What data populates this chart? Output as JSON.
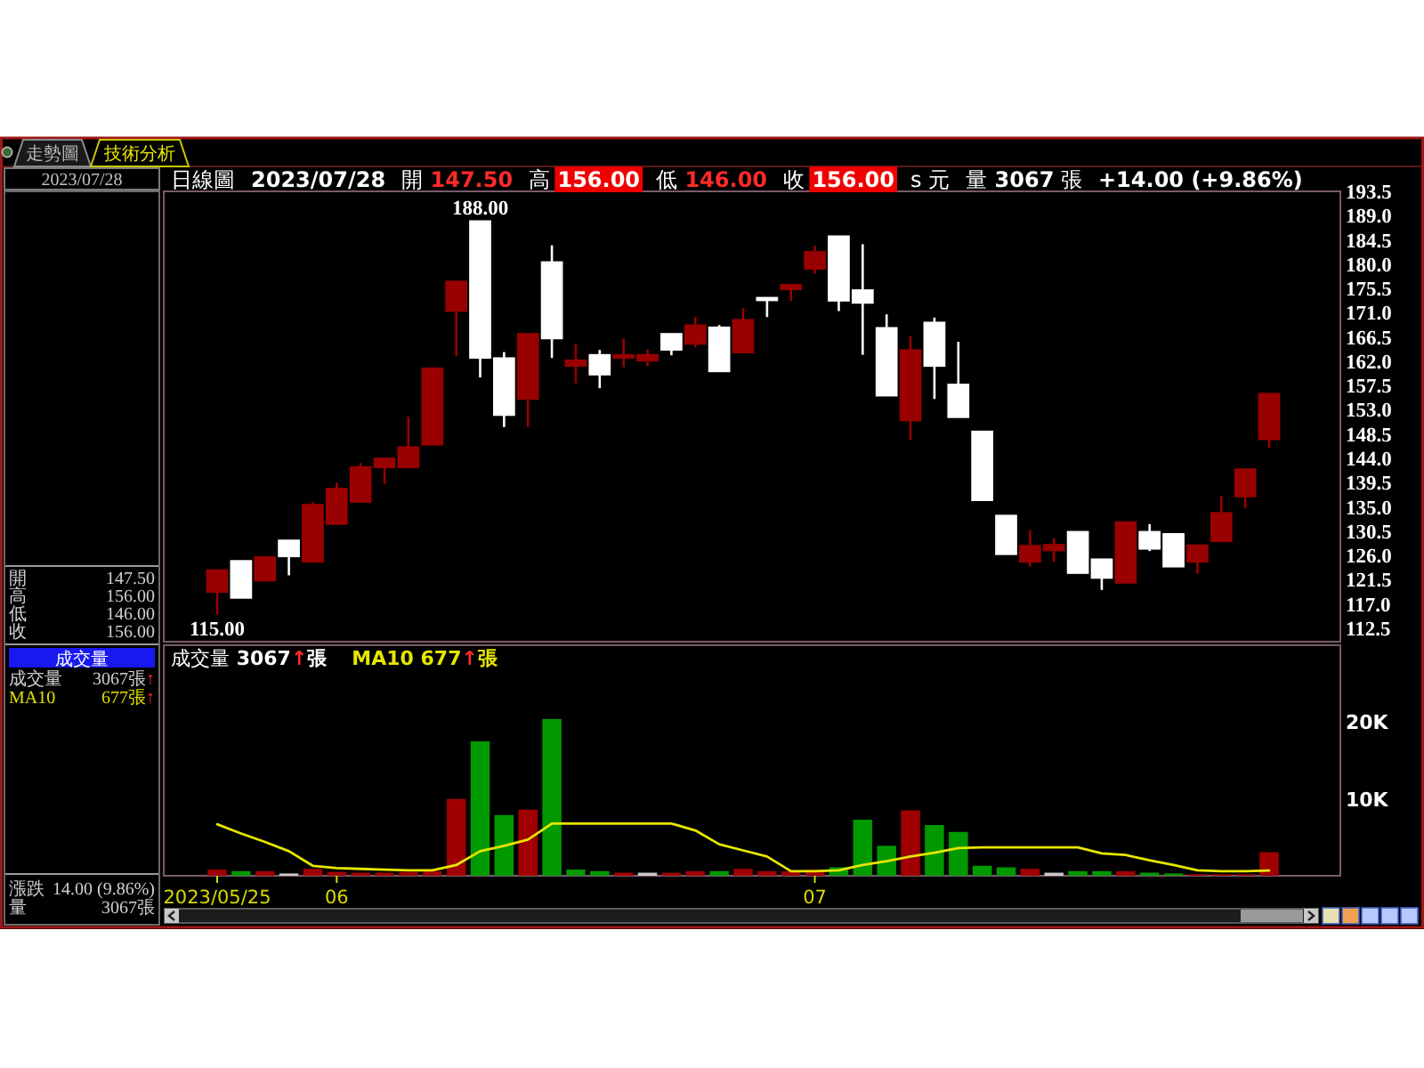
{
  "chart_data": [
    {
      "type": "other",
      "annotations": [
        "走勢圖",
        "技術分析",
        "2023/07/28",
        "開 147.50",
        "高 156.00",
        "低 146.00",
        "收 156.00",
        "成交量",
        "成交量 3067張↑",
        "MA10 677張↑",
        "漲跌 14.00 (9.86%)",
        "量 3067張"
      ]
    },
    {
      "type": "candlestick",
      "title": "日線圖",
      "annotations": [
        "2023/07/28",
        "開 147.50",
        "高 156.00",
        "低 146.00",
        "收 156.00",
        "s 元",
        "量 3067 張",
        "+14.00 (+9.86%)",
        {
          "text": "188.00",
          "y": 188
        },
        {
          "text": "115.00",
          "y": 115
        }
      ],
      "categories": [
        null,
        null,
        null,
        null,
        null,
        null,
        null,
        null,
        null,
        null,
        null,
        null,
        null,
        null,
        null,
        null,
        null,
        null,
        null,
        null,
        null,
        null,
        null,
        null,
        null,
        null,
        null,
        null,
        null,
        null,
        null,
        null,
        null,
        null,
        null,
        null,
        null,
        null,
        null,
        null,
        null,
        null,
        null,
        null,
        null
      ],
      "ohlc": [
        [
          119.2,
          123.3,
          115.0,
          123.3
        ],
        [
          125.0,
          125.0,
          118.1,
          118.1
        ],
        [
          121.3,
          125.7,
          121.3,
          125.7
        ],
        [
          128.8,
          128.8,
          122.3,
          125.8
        ],
        [
          124.8,
          135.9,
          124.8,
          135.4
        ],
        [
          131.8,
          139.5,
          131.8,
          138.4
        ],
        [
          135.9,
          143.1,
          135.9,
          142.4
        ],
        [
          142.3,
          144.0,
          139.2,
          144.0
        ],
        [
          142.3,
          151.7,
          142.3,
          146.1
        ],
        [
          146.5,
          160.7,
          146.5,
          160.7
        ],
        [
          171.3,
          176.8,
          162.9,
          176.8
        ],
        [
          188.0,
          188.0,
          159.0,
          162.6
        ],
        [
          162.6,
          163.7,
          149.8,
          152.0
        ],
        [
          155.0,
          167.1,
          149.8,
          167.1
        ],
        [
          180.4,
          183.5,
          162.6,
          166.2
        ],
        [
          161.1,
          165.3,
          157.9,
          162.2
        ],
        [
          163.2,
          164.1,
          157.0,
          159.5
        ],
        [
          162.6,
          166.2,
          160.9,
          163.2
        ],
        [
          162.1,
          164.2,
          161.1,
          163.2
        ],
        [
          167.1,
          167.1,
          163.1,
          164.1
        ],
        [
          165.2,
          170.2,
          164.6,
          168.7
        ],
        [
          168.3,
          168.7,
          160.1,
          160.1
        ],
        [
          163.6,
          171.8,
          163.6,
          169.7
        ],
        [
          173.8,
          173.8,
          170.2,
          173.3
        ],
        [
          175.3,
          176.2,
          173.2,
          176.2
        ],
        [
          179.1,
          183.4,
          178.2,
          182.3
        ],
        [
          185.2,
          185.2,
          171.3,
          173.2
        ],
        [
          175.2,
          183.7,
          163.2,
          172.8
        ],
        [
          168.2,
          170.7,
          155.6,
          155.6
        ],
        [
          151.0,
          166.7,
          147.4,
          164.1
        ],
        [
          169.2,
          170.1,
          155.0,
          161.1
        ],
        [
          157.7,
          165.6,
          151.6,
          151.6
        ],
        [
          149.0,
          149.0,
          136.2,
          136.2
        ],
        [
          133.4,
          133.4,
          126.2,
          126.2
        ],
        [
          124.8,
          130.7,
          123.9,
          127.8
        ],
        [
          126.9,
          129.2,
          124.8,
          128.0
        ],
        [
          130.4,
          130.4,
          122.7,
          122.7
        ],
        [
          125.3,
          125.3,
          119.6,
          121.8
        ],
        [
          120.9,
          132.2,
          120.9,
          132.2
        ],
        [
          130.4,
          131.8,
          126.8,
          127.2
        ],
        [
          130.0,
          130.0,
          123.9,
          123.9
        ],
        [
          124.8,
          127.9,
          122.6,
          127.9
        ],
        [
          128.6,
          137.0,
          128.6,
          133.9
        ],
        [
          136.9,
          142.0,
          134.7,
          142.0
        ],
        [
          147.5,
          156.0,
          146.0,
          156.0
        ]
      ],
      "colors": [
        "#990000",
        "#ffffff",
        "#990000",
        "#ffffff",
        "#990000",
        "#990000",
        "#990000",
        "#990000",
        "#990000",
        "#990000",
        "#990000",
        "#ffffff",
        "#ffffff",
        "#990000",
        "#ffffff",
        "#990000",
        "#ffffff",
        "#990000",
        "#990000",
        "#ffffff",
        "#990000",
        "#ffffff",
        "#990000",
        "#ffffff",
        "#990000",
        "#990000",
        "#ffffff",
        "#ffffff",
        "#ffffff",
        "#990000",
        "#ffffff",
        "#ffffff",
        "#ffffff",
        "#ffffff",
        "#990000",
        "#990000",
        "#ffffff",
        "#ffffff",
        "#990000",
        "#ffffff",
        "#ffffff",
        "#990000",
        "#990000",
        "#990000",
        "#990000"
      ],
      "ylim": [
        110,
        193.5
      ],
      "yticks": [
        {
          "value": 112.5,
          "label": "112.5"
        },
        {
          "value": 117,
          "label": "117.0"
        },
        {
          "value": 121.5,
          "label": "121.5"
        },
        {
          "value": 126,
          "label": "126.0"
        },
        {
          "value": 130.5,
          "label": "130.5"
        },
        {
          "value": 135,
          "label": "135.0"
        },
        {
          "value": 139.5,
          "label": "139.5"
        },
        {
          "value": 144,
          "label": "144.0"
        },
        {
          "value": 148.5,
          "label": "148.5"
        },
        {
          "value": 153,
          "label": "153.0"
        },
        {
          "value": 157.5,
          "label": "157.5"
        },
        {
          "value": 162,
          "label": "162.0"
        },
        {
          "value": 166.5,
          "label": "166.5"
        },
        {
          "value": 171,
          "label": "171.0"
        },
        {
          "value": 175.5,
          "label": "175.5"
        },
        {
          "value": 180,
          "label": "180.0"
        },
        {
          "value": 184.5,
          "label": "184.5"
        },
        {
          "value": 189,
          "label": "189.0"
        },
        {
          "value": 193.5,
          "label": "193.5"
        }
      ],
      "tick_labels": "y"
    },
    {
      "type": "bar",
      "annotations": [
        "成交量 3067↑張",
        "MA10 677↑張"
      ],
      "categories": [
        "2023/05/25",
        null,
        null,
        null,
        null,
        "06",
        null,
        null,
        null,
        null,
        null,
        null,
        null,
        null,
        null,
        null,
        null,
        null,
        null,
        null,
        null,
        null,
        null,
        null,
        null,
        "07",
        null,
        null,
        null,
        null,
        null,
        null,
        null,
        null,
        null,
        null,
        null,
        null,
        null,
        null,
        null,
        null,
        null,
        null,
        null
      ],
      "series": [
        {
          "type": "bar",
          "values": [
            800,
            600,
            600,
            300,
            900,
            500,
            400,
            400,
            500,
            600,
            10000,
            17500,
            7900,
            8600,
            20400,
            800,
            600,
            400,
            400,
            400,
            600,
            600,
            900,
            600,
            600,
            800,
            1100,
            7300,
            3900,
            8500,
            6600,
            5700,
            1300,
            1100,
            900,
            400,
            600,
            600,
            600,
            400,
            300,
            200,
            200,
            200,
            3067
          ],
          "colors": [
            "#a00000",
            "#009900",
            "#a00000",
            "#c8c8c8",
            "#a00000",
            "#a00000",
            "#a00000",
            "#a00000",
            "#a00000",
            "#a00000",
            "#a00000",
            "#009900",
            "#009900",
            "#a00000",
            "#009900",
            "#009900",
            "#009900",
            "#a00000",
            "#c8c8c8",
            "#a00000",
            "#a00000",
            "#009900",
            "#a00000",
            "#a00000",
            "#a00000",
            "#a00000",
            "#009900",
            "#009900",
            "#009900",
            "#a00000",
            "#009900",
            "#009900",
            "#009900",
            "#009900",
            "#a00000",
            "#c8c8c8",
            "#009900",
            "#009900",
            "#a00000",
            "#009900",
            "#009900",
            "#a00000",
            "#a00000",
            "#a00000",
            "#a00000"
          ]
        },
        {
          "type": "line",
          "color": "#e6e600",
          "values": [
            6700,
            5500,
            4400,
            3200,
            1300,
            1000,
            900,
            800,
            700,
            700,
            1400,
            3200,
            3900,
            4700,
            6800,
            6800,
            6800,
            6800,
            6800,
            6800,
            5900,
            4100,
            3300,
            2500,
            600,
            600,
            700,
            1400,
            1900,
            2500,
            3000,
            3600,
            3700,
            3700,
            3700,
            3700,
            3700,
            2900,
            2700,
            2000,
            1400,
            700,
            600,
            600,
            677
          ]
        }
      ],
      "ylim": [
        0,
        30000
      ],
      "yticks": [
        {
          "value": 10000,
          "label": "10K"
        },
        {
          "value": 20000,
          "label": "20K"
        }
      ]
    }
  ]
}
